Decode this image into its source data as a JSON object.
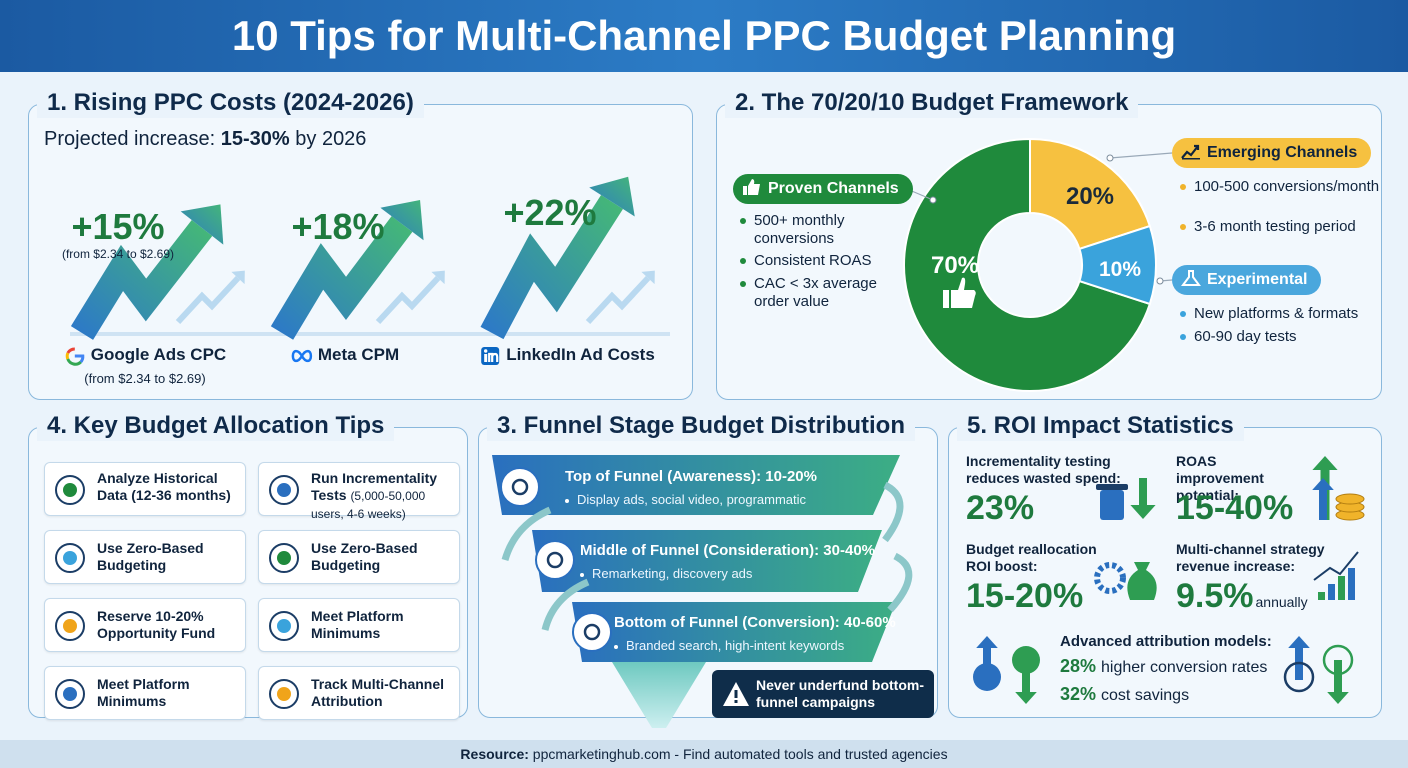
{
  "header": {
    "title": "10 Tips for Multi-Channel PPC Budget Planning"
  },
  "rising_costs": {
    "title": "1. Rising PPC Costs (2024-2026)",
    "subtitle_prefix": "Projected increase: ",
    "subtitle_bold": "15-30%",
    "subtitle_suffix": " by 2026",
    "items": [
      {
        "value": "+15%",
        "note": "(from $2.34 to $2.69)",
        "label": "Google Ads CPC",
        "sub": "(from $2.34 to $2.69)"
      },
      {
        "value": "+18%",
        "label": "Meta CPM"
      },
      {
        "value": "+22%",
        "label": "LinkedIn Ad Costs"
      }
    ]
  },
  "chart_data": {
    "type": "pie",
    "title": "2. The 70/20/10 Budget Framework",
    "categories": [
      "Proven Channels",
      "Emerging Channels",
      "Experimental"
    ],
    "values": [
      70,
      20,
      10
    ],
    "value_labels": [
      "70%",
      "20%",
      "10%"
    ],
    "colors": [
      "#1f8a3c",
      "#f6c140",
      "#3aa3dc"
    ],
    "notes": [
      [
        "500+ monthly conversions",
        "Consistent ROAS",
        "CAC < 3x average order value"
      ],
      [
        "100-500 conversions/month",
        "3-6 month testing period"
      ],
      [
        "New platforms & formats",
        "60-90 day tests"
      ]
    ]
  },
  "tips": {
    "title": "4. Key Budget Allocation Tips",
    "items": [
      {
        "title": "Analyze Historical Data",
        "detail": "(12-36 months)"
      },
      {
        "title": "Run Incrementality Tests",
        "detail": "(5,000-50,000 users, 4-6 weeks)"
      },
      {
        "title": "Use Zero-Based Budgeting"
      },
      {
        "title": "Use Zero-Based Budgeting"
      },
      {
        "title": "Reserve 10-20% Opportunity Fund"
      },
      {
        "title": "Meet Platform Minimums"
      },
      {
        "title": "Meet Platform Minimums"
      },
      {
        "title": "Track Multi-Channel Attribution"
      }
    ]
  },
  "funnel": {
    "title": "3. Funnel Stage Budget Distribution",
    "stages": [
      {
        "title": "Top of Funnel (Awareness): 10-20%",
        "detail": "Display ads, social video, programmatic"
      },
      {
        "title": "Middle of Funnel (Consideration): 30-40%",
        "detail": "Remarketing, discovery ads"
      },
      {
        "title": "Bottom of Funnel (Conversion): 40-60%",
        "detail": "Branded search, high-intent keywords"
      }
    ],
    "warning": "Never underfund bottom-funnel campaigns"
  },
  "roi": {
    "title": "5. ROI Impact Statistics",
    "stats": [
      {
        "label": "Incrementality testing reduces wasted spend:",
        "value": "23%"
      },
      {
        "label": "ROAS improvement potential:",
        "value": "15-40%"
      },
      {
        "label": "Budget reallocation ROI boost:",
        "value": "15-20%"
      },
      {
        "label": "Multi-channel strategy revenue increase:",
        "value": "9.5%",
        "suffix": "annually"
      }
    ],
    "attribution": {
      "title": "Advanced attribution models:",
      "lines": [
        {
          "value": "28%",
          "text": "higher conversion rates"
        },
        {
          "value": "32%",
          "text": "cost savings"
        }
      ]
    }
  },
  "footer": {
    "label": "Resource:",
    "text": "ppcmarketinghub.com - Find automated tools and trusted agencies"
  }
}
